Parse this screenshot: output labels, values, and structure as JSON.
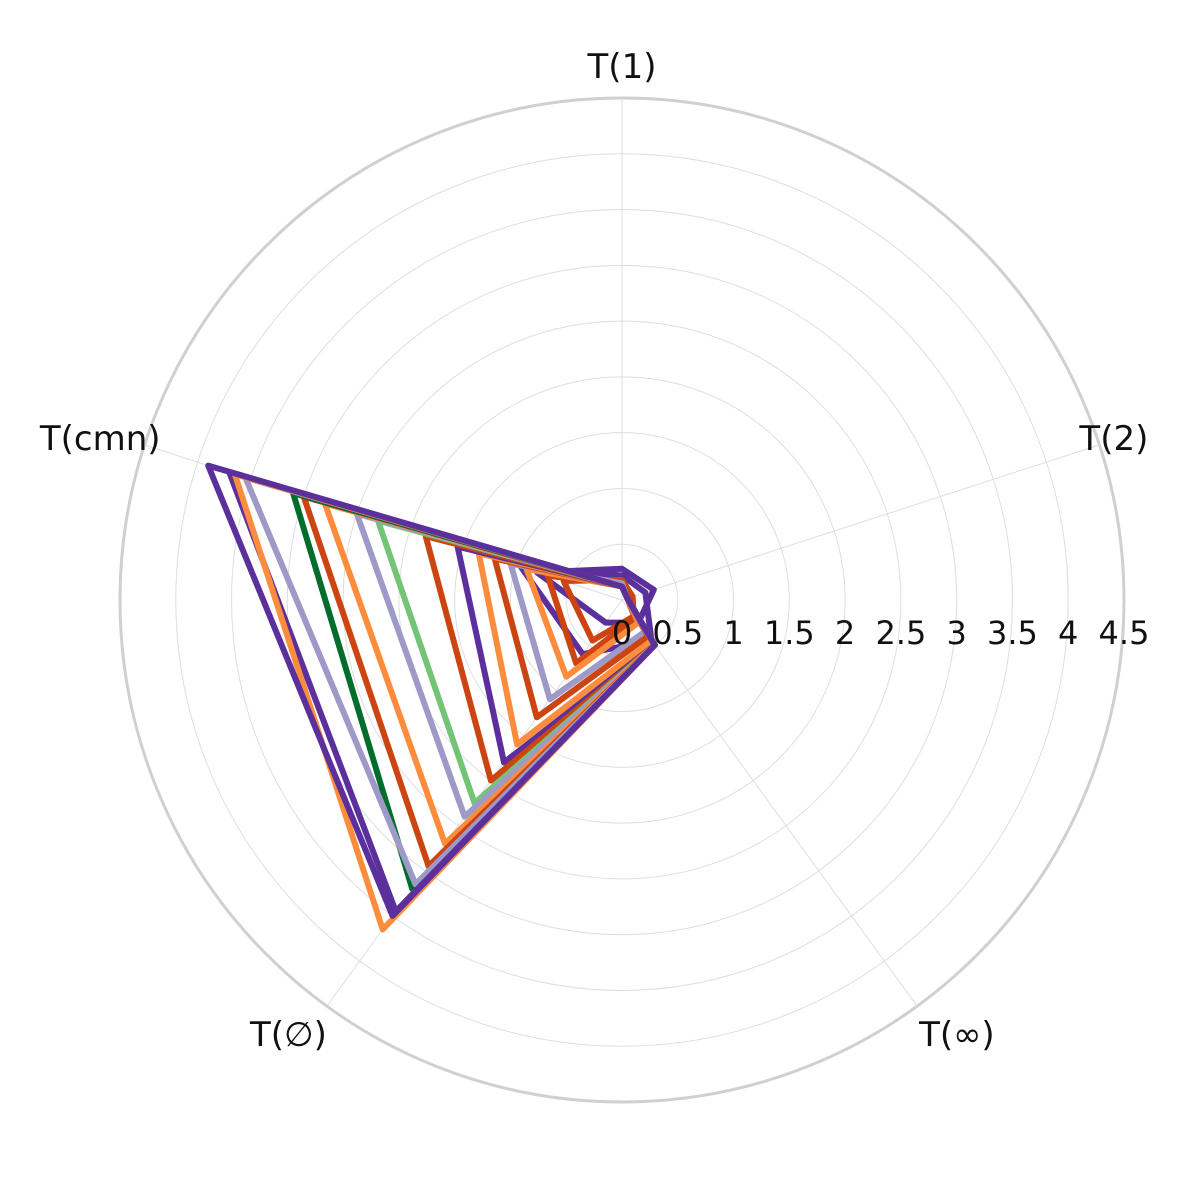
{
  "chart_data": {
    "type": "radar",
    "axes": [
      "T(1)",
      "T(2)",
      "T(∞)",
      "T(∅)",
      "T(cmn)"
    ],
    "radial_ticks": [
      "0",
      "0.5",
      "1",
      "1.5",
      "2",
      "2.5",
      "3",
      "3.5",
      "4",
      "4.5"
    ],
    "r_range": [
      0,
      4.5
    ],
    "grid": true,
    "series": [
      {
        "color": "#5b2f9c",
        "values": [
          0.28,
          0.3,
          0.25,
          0.25,
          0.8
        ]
      },
      {
        "color": "#5b2f9c",
        "values": [
          0.22,
          0.22,
          0.45,
          0.6,
          0.95
        ]
      },
      {
        "color": "#cc4411",
        "values": [
          0.18,
          0.1,
          0.18,
          0.45,
          0.55
        ]
      },
      {
        "color": "#cc4411",
        "values": [
          0.15,
          0.05,
          0.2,
          0.7,
          0.7
        ]
      },
      {
        "color": "#fd8d3c",
        "values": [
          0.12,
          0.05,
          0.25,
          0.85,
          0.9
        ]
      },
      {
        "color": "#9e9ac8",
        "values": [
          0.15,
          0.05,
          0.35,
          1.1,
          1.05
        ]
      },
      {
        "color": "#cc4411",
        "values": [
          0.12,
          0.05,
          0.4,
          1.3,
          1.2
        ]
      },
      {
        "color": "#fd8d3c",
        "values": [
          0.12,
          0.05,
          0.45,
          1.6,
          1.35
        ]
      },
      {
        "color": "#5b2f9c",
        "values": [
          0.12,
          0.05,
          0.5,
          1.8,
          1.55
        ]
      },
      {
        "color": "#cc4411",
        "values": [
          0.12,
          0.05,
          0.5,
          2.0,
          1.85
        ]
      },
      {
        "color": "#74c476",
        "values": [
          0.12,
          0.05,
          0.5,
          2.25,
          2.3
        ]
      },
      {
        "color": "#9e9ac8",
        "values": [
          0.12,
          0.05,
          0.5,
          2.4,
          2.5
        ]
      },
      {
        "color": "#fd8d3c",
        "values": [
          0.12,
          0.05,
          0.5,
          2.7,
          2.8
        ]
      },
      {
        "color": "#cc4411",
        "values": [
          0.12,
          0.05,
          0.5,
          2.95,
          3.0
        ]
      },
      {
        "color": "#006d2c",
        "values": [
          0.12,
          0.05,
          0.5,
          3.2,
          3.1
        ]
      },
      {
        "color": "#9e9ac8",
        "values": [
          0.12,
          0.05,
          0.5,
          3.15,
          3.55
        ]
      },
      {
        "color": "#5b2f9c",
        "values": [
          0.12,
          0.05,
          0.5,
          3.45,
          3.7
        ]
      },
      {
        "color": "#fd8d3c",
        "values": [
          0.12,
          0.05,
          0.5,
          3.65,
          3.65
        ]
      },
      {
        "color": "#5b2f9c",
        "values": [
          0.12,
          0.05,
          0.5,
          3.5,
          3.9
        ]
      }
    ]
  }
}
